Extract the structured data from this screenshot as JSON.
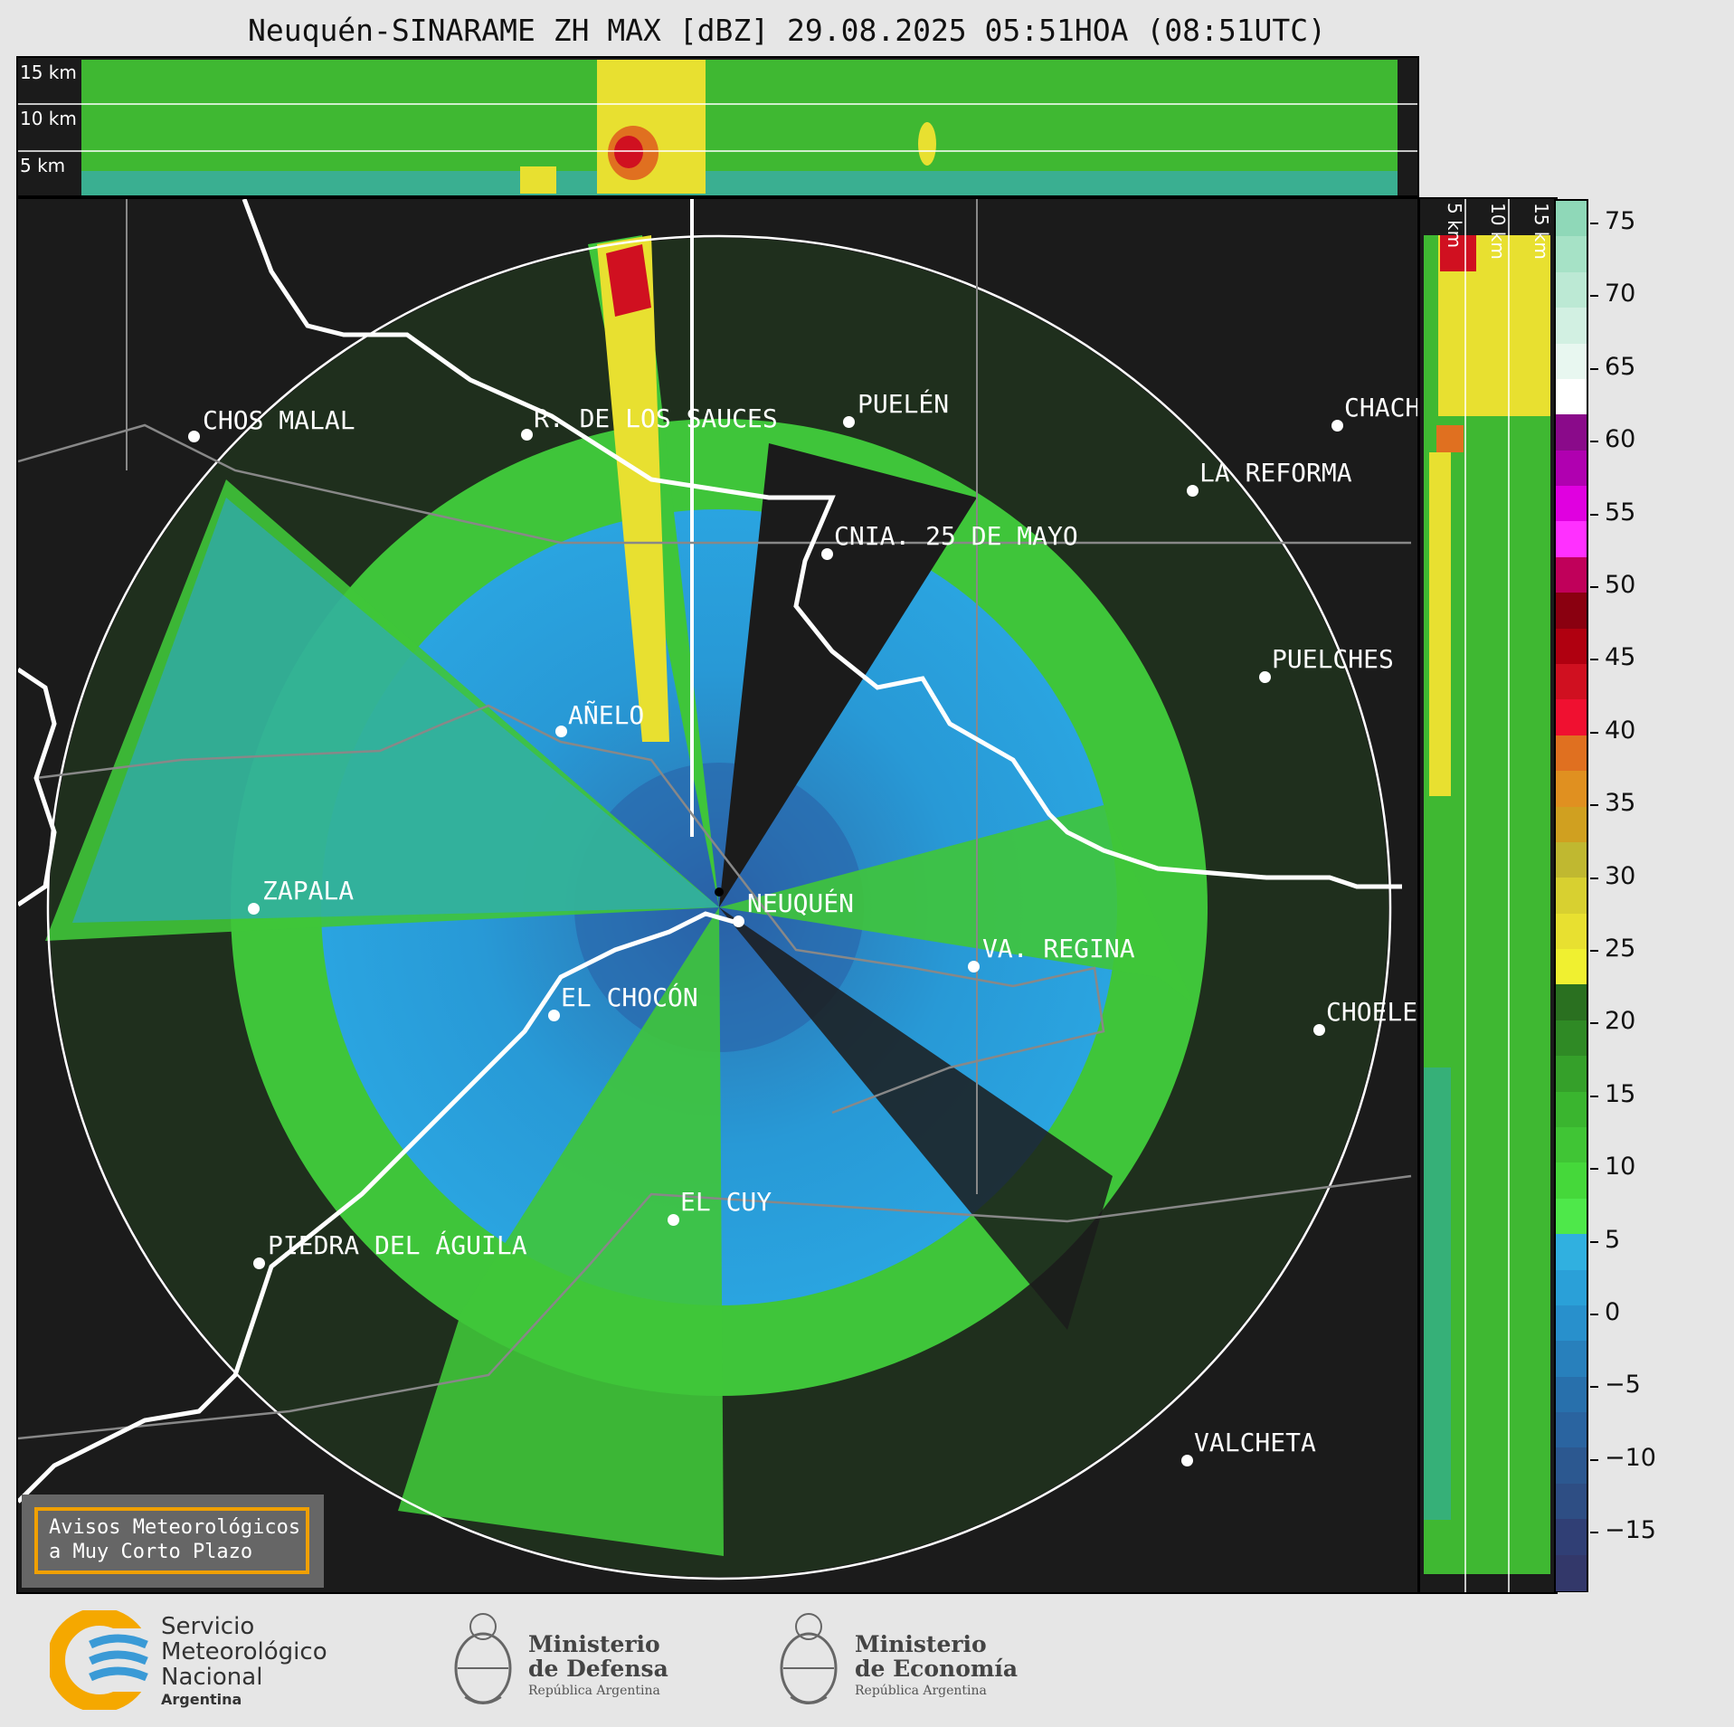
{
  "title": "Neuquén-SINARAME ZH MAX [dBZ] 29.08.2025 05:51HOA (08:51UTC)",
  "top_panel": {
    "height_labels": [
      "15 km",
      "10 km",
      "5 km"
    ]
  },
  "side_panel": {
    "height_labels": [
      "5 km",
      "10 km",
      "15 km"
    ]
  },
  "cities": [
    {
      "name": "CHOS MALAL"
    },
    {
      "name": "R. DE LOS SAUCES"
    },
    {
      "name": "PUELÉN"
    },
    {
      "name": "CHACH"
    },
    {
      "name": "LA REFORMA"
    },
    {
      "name": "CNIA. 25 DE MAYO"
    },
    {
      "name": "PUELCHES"
    },
    {
      "name": "AÑELO"
    },
    {
      "name": "ZAPALA"
    },
    {
      "name": "NEUQUÉN"
    },
    {
      "name": "VA. REGINA"
    },
    {
      "name": "EL CHOCÓN"
    },
    {
      "name": "CHOELE"
    },
    {
      "name": "EL CUY"
    },
    {
      "name": "PIEDRA DEL ÁGUILA"
    },
    {
      "name": "VALCHETA"
    }
  ],
  "colorbar": {
    "ticks": [
      "75",
      "70",
      "65",
      "60",
      "55",
      "50",
      "45",
      "40",
      "35",
      "30",
      "25",
      "20",
      "15",
      "10",
      "5",
      "0",
      "−5",
      "−10",
      "−15"
    ],
    "colors": [
      "#8fd8b8",
      "#a6e2c6",
      "#bce9d4",
      "#d2f0e2",
      "#e8f7f0",
      "#ffffff",
      "#8a0a8a",
      "#b000b0",
      "#e000e0",
      "#ff30ff",
      "#c0005a",
      "#8a0010",
      "#b00010",
      "#d01020",
      "#f01030",
      "#e07020",
      "#e09020",
      "#d0a020",
      "#c0b830",
      "#d8d030",
      "#e8e030",
      "#f0f030",
      "#2a7020",
      "#2f8a25",
      "#35a02a",
      "#3ab52f",
      "#40c535",
      "#45d83a",
      "#4ee84a",
      "#30b0e0",
      "#2aa0d8",
      "#2890cc",
      "#2880bc",
      "#2870ac",
      "#2a64a0",
      "#2c5890",
      "#2e4e84",
      "#303f75",
      "#33386a"
    ]
  },
  "aviso": {
    "line1": "Avisos Meteorológicos",
    "line2": "a Muy Corto Plazo"
  },
  "logos": {
    "smn_line1": "Servicio",
    "smn_line2": "Meteorológico",
    "smn_line3": "Nacional",
    "smn_line4": "Argentina",
    "defensa_line1": "Ministerio",
    "defensa_line2": "de Defensa",
    "defensa_line3": "República Argentina",
    "economia_line1": "Ministerio",
    "economia_line2": "de Economía",
    "economia_line3": "República Argentina"
  }
}
